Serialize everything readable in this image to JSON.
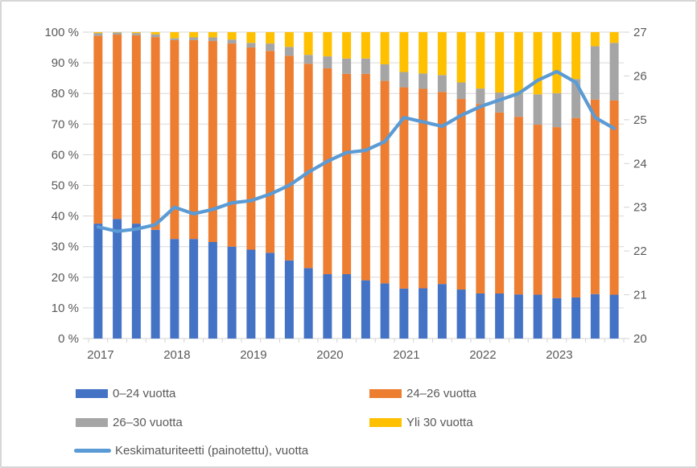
{
  "chart_data": {
    "type": "bar",
    "subtype": "100-percent-stacked-column-with-line",
    "x": {
      "years": [
        "2017",
        "2018",
        "2019",
        "2020",
        "2021",
        "2022",
        "2023"
      ],
      "bars_per_year": 4,
      "total_bars": 28
    },
    "left_axis": {
      "min": 0,
      "max": 100,
      "tick_step": 10,
      "tick_labels": [
        "0 %",
        "10 %",
        "20 %",
        "30 %",
        "40 %",
        "50 %",
        "60 %",
        "70 %",
        "80 %",
        "90 %",
        "100 %"
      ]
    },
    "right_axis": {
      "min": 20,
      "max": 27,
      "tick_step": 1,
      "tick_labels": [
        "20",
        "21",
        "22",
        "23",
        "24",
        "25",
        "26",
        "27"
      ]
    },
    "series": [
      {
        "name": "0–24 vuotta",
        "color": "#4472C4",
        "values": [
          37.5,
          39,
          37.5,
          35.5,
          32.5,
          32.5,
          31.5,
          30,
          29,
          28,
          25.5,
          23,
          21,
          21,
          19,
          18,
          16.3,
          16.4,
          17.8,
          16,
          14.7,
          14.7,
          14.4,
          14.3,
          13.2,
          13.4,
          14.5,
          14.3
        ]
      },
      {
        "name": "24–26 vuotta",
        "color": "#ED7D31",
        "values": [
          61.3,
          60.2,
          61.5,
          62.9,
          64.9,
          64.9,
          65.6,
          66.3,
          66,
          65.9,
          66.8,
          66.7,
          67.2,
          65.4,
          67.4,
          66.1,
          65.7,
          65.1,
          62.7,
          62.2,
          61.9,
          59.1,
          58,
          55.5,
          55.8,
          58.6,
          63.5,
          63.4
        ]
      },
      {
        "name": "26–30 vuotta",
        "color": "#A5A5A5",
        "values": [
          0.9,
          0.7,
          0.7,
          0.9,
          0.6,
          0.9,
          1.2,
          1.3,
          1.5,
          2.4,
          2.9,
          2.9,
          3.9,
          5,
          5,
          5.4,
          5,
          5,
          5.5,
          5.4,
          5,
          6.5,
          7.5,
          9.9,
          11.1,
          12.7,
          17.4,
          18.8
        ]
      },
      {
        "name": "Yli 30 vuotta",
        "color": "#FFC000",
        "values": [
          0.3,
          0.1,
          0.3,
          0.7,
          2,
          1.7,
          1.7,
          2.4,
          3.5,
          3.7,
          4.8,
          7.4,
          7.9,
          8.6,
          8.6,
          10.5,
          13,
          13.5,
          14,
          16.4,
          18.4,
          19.7,
          20.1,
          20.3,
          19.9,
          15.3,
          4.6,
          3.5
        ]
      }
    ],
    "line": {
      "name": "Keskimaturiteetti (painotettu), vuotta",
      "color": "#5B9BD5",
      "axis": "right",
      "values": [
        22.55,
        22.45,
        22.5,
        22.6,
        23.0,
        22.85,
        22.95,
        23.1,
        23.15,
        23.3,
        23.5,
        23.8,
        24.05,
        24.25,
        24.3,
        24.5,
        25.05,
        24.95,
        24.85,
        25.1,
        25.3,
        25.45,
        25.6,
        25.9,
        26.1,
        25.85,
        25.05,
        24.8
      ]
    },
    "legend_position": "bottom",
    "grid": true,
    "colors": {
      "gridline": "#D9D9D9",
      "axis_line": "#D3D3D3",
      "tick": "#D3D3D3",
      "label": "#595959",
      "background": "#FFFFFF",
      "border": "#D6D6D6"
    }
  }
}
